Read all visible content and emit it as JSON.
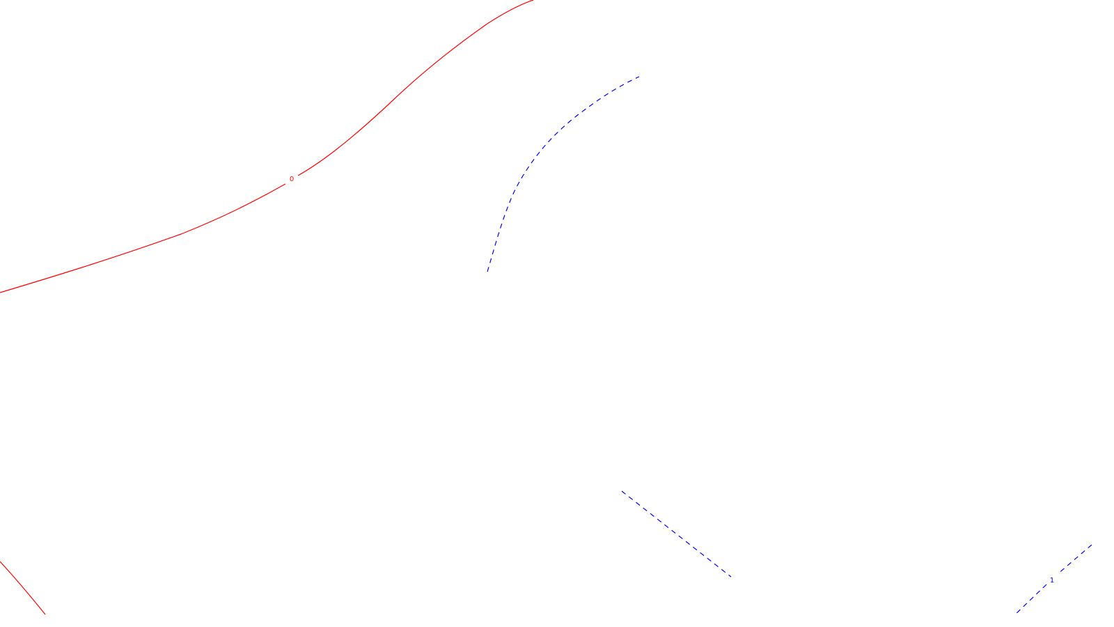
{
  "contours": [
    {
      "id": "contour-0",
      "level_label": "0",
      "color": "#ff0000",
      "line_style": "solid"
    },
    {
      "id": "contour-1",
      "level_label": "1",
      "color": "#0000ff",
      "line_style": "dashed"
    }
  ]
}
